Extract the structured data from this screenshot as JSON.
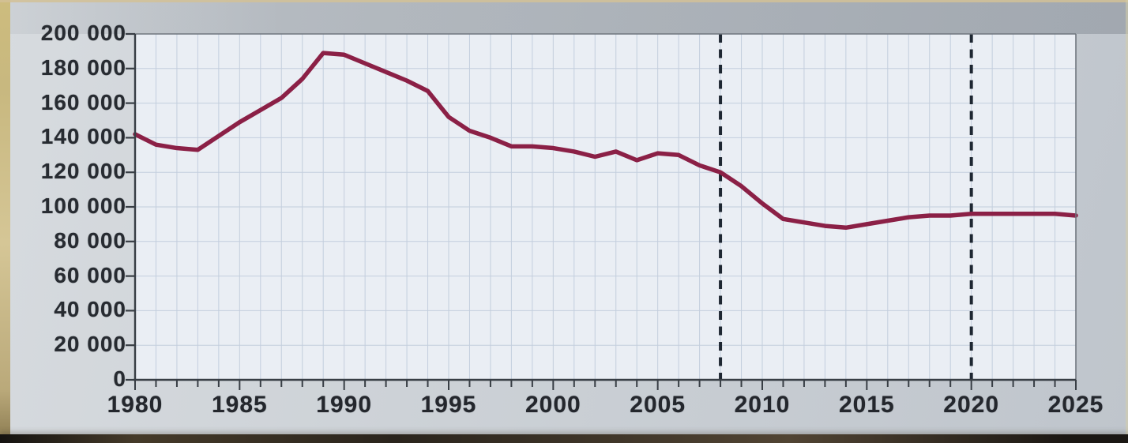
{
  "colors": {
    "line": "#8b2046",
    "dashed": "#1e2732",
    "plot_bg": "#eaeef4",
    "grid": "#c3cedd",
    "axis": "#383e45",
    "box": "#70767e",
    "label": "#272b31",
    "page_bg": "#cdd2d7",
    "photo_edge": "#c8b87f",
    "photo_bottom": "#2a241c"
  },
  "chart_data": {
    "type": "line",
    "title": "",
    "xlabel": "",
    "ylabel": "",
    "grid": true,
    "legend": "none",
    "xlim": [
      1980,
      2025
    ],
    "ylim": [
      0,
      200000
    ],
    "x_years": [
      1980,
      1981,
      1982,
      1983,
      1984,
      1985,
      1986,
      1987,
      1988,
      1989,
      1990,
      1991,
      1992,
      1993,
      1994,
      1995,
      1996,
      1997,
      1998,
      1999,
      2000,
      2001,
      2002,
      2003,
      2004,
      2005,
      2006,
      2007,
      2008,
      2009,
      2010,
      2011,
      2012,
      2013,
      2014,
      2015,
      2016,
      2017,
      2018,
      2019,
      2020,
      2021,
      2022,
      2023,
      2024,
      2025
    ],
    "series": [
      {
        "name": "main-series",
        "color": "#8b2046",
        "values": [
          142000,
          136000,
          134000,
          133000,
          141000,
          149000,
          156000,
          163000,
          174000,
          189000,
          188000,
          183000,
          178000,
          173000,
          167000,
          152000,
          144000,
          140000,
          135000,
          135000,
          134000,
          132000,
          129000,
          132000,
          127000,
          131000,
          130000,
          124000,
          120000,
          112000,
          102000,
          93000,
          91000,
          89000,
          88000,
          90000,
          92000,
          94000,
          95000,
          95000,
          96000,
          96000,
          96000,
          96000,
          96000,
          95000
        ]
      }
    ],
    "x_tick_years": [
      1980,
      1985,
      1990,
      1995,
      2000,
      2005,
      2010,
      2015,
      2020,
      2025
    ],
    "x_tick_labels": [
      "1980",
      "1985",
      "1990",
      "1995",
      "2000",
      "2005",
      "2010",
      "2015",
      "2020",
      "2025"
    ],
    "y_tick_values": [
      0,
      20000,
      40000,
      60000,
      80000,
      100000,
      120000,
      140000,
      160000,
      180000,
      200000
    ],
    "y_tick_labels": [
      "0",
      "20 000",
      "40 000",
      "60 000",
      "80 000",
      "100 000",
      "120 000",
      "140 000",
      "160 000",
      "180 000",
      "200 000"
    ],
    "reference_lines": [
      {
        "axis": "x",
        "value": 2008,
        "style": "dashed"
      },
      {
        "axis": "x",
        "value": 2020,
        "style": "dashed"
      }
    ]
  }
}
